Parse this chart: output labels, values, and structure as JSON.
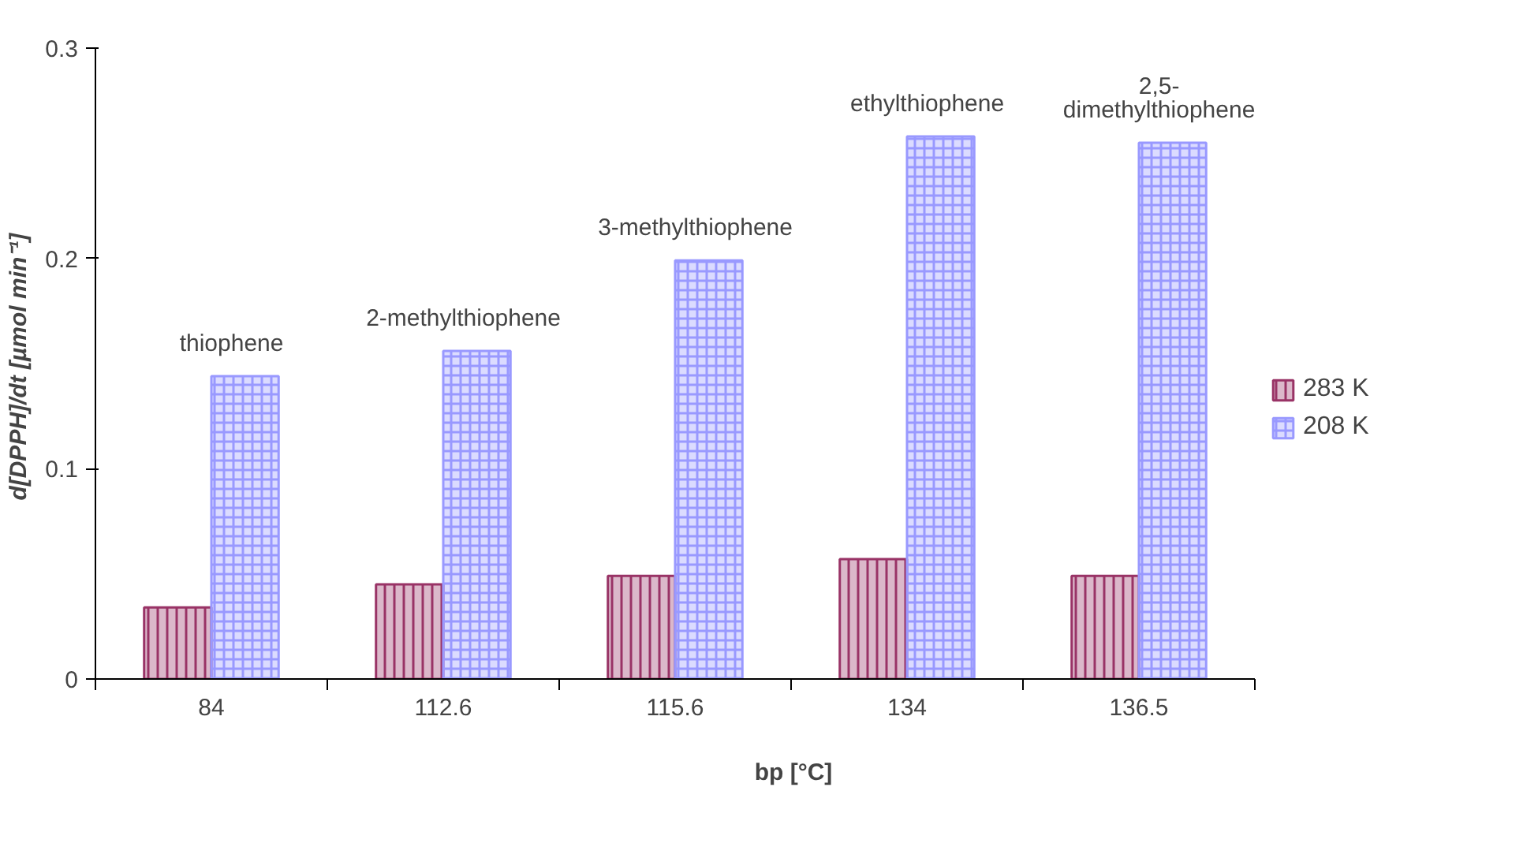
{
  "chart_data": {
    "type": "bar",
    "xlabel": "bp [°C]",
    "ylabel": "d[DPPH]/dt  [µmol min⁻¹]",
    "categories": [
      "84",
      "112.6",
      "115.6",
      "134",
      "136.5"
    ],
    "series": [
      {
        "name": "283 K",
        "color": "#993366",
        "values": [
          0.034,
          0.045,
          0.049,
          0.057,
          0.049
        ]
      },
      {
        "name": "208 K",
        "color": "#9999ff",
        "values": [
          0.144,
          0.156,
          0.199,
          0.258,
          0.255
        ]
      }
    ],
    "annotations": [
      {
        "text": "thiophene",
        "x": "84",
        "y": 0.144
      },
      {
        "text": "2-methylthiophene",
        "x": "112.6",
        "y": 0.156
      },
      {
        "text": "3-methylthiophene",
        "x": "115.6",
        "y": 0.199
      },
      {
        "text": "ethylthiophene",
        "x": "134",
        "y": 0.258
      },
      {
        "text": "2,5-\ndimethylthiophene",
        "x": "136.5",
        "y": 0.255
      }
    ],
    "ylim": [
      0,
      0.3
    ],
    "yticks": [
      0,
      0.1,
      0.2,
      0.3
    ],
    "grid": false,
    "legend": "right"
  }
}
